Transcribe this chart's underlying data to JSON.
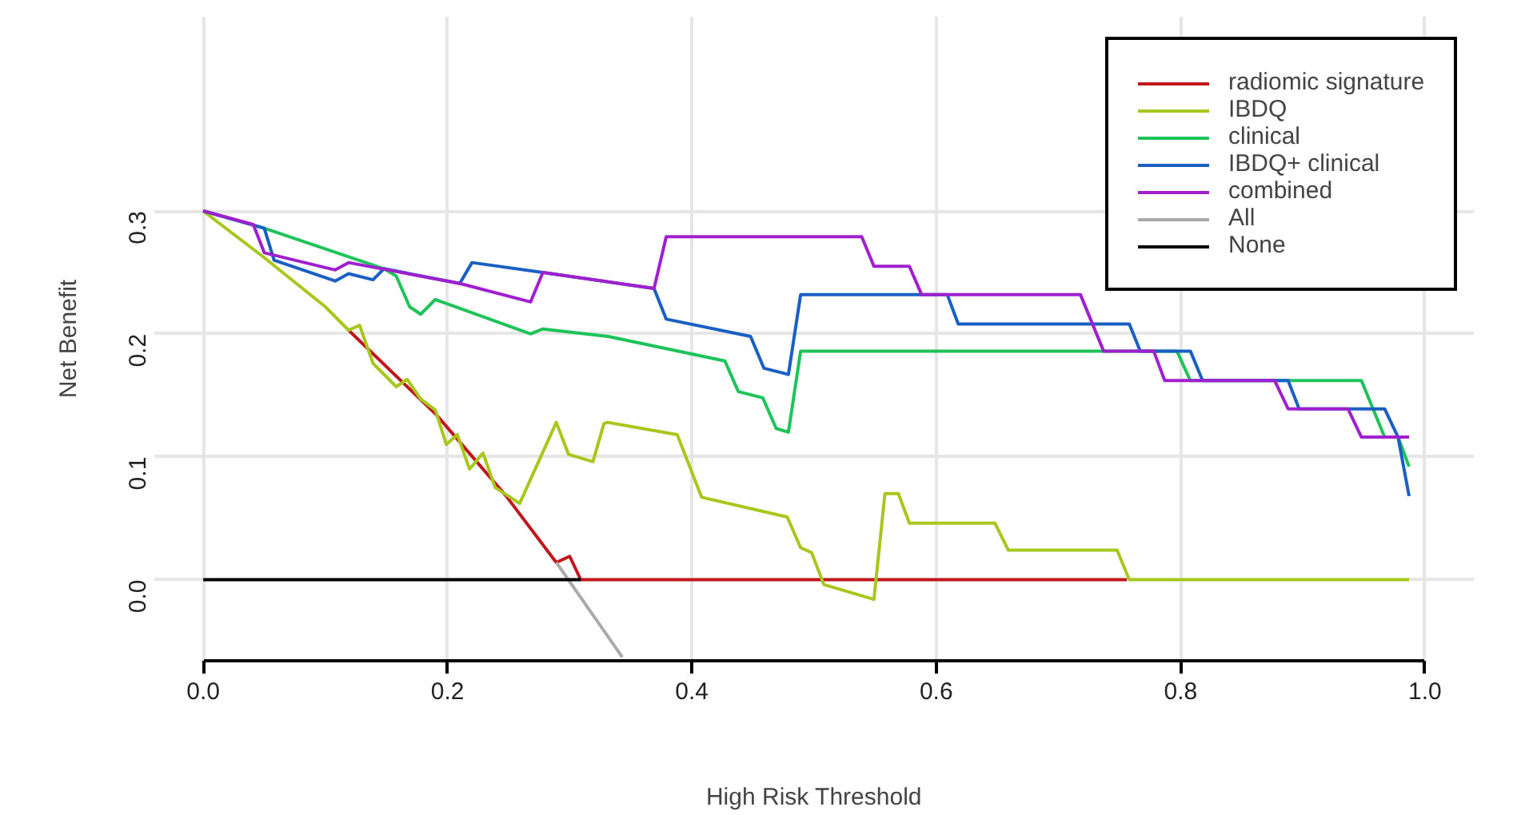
{
  "chart_data": {
    "type": "line",
    "xlabel": "High Risk Threshold",
    "ylabel": "Net Benefit",
    "xlim": [
      -0.04,
      1.04
    ],
    "ylim": [
      -0.066,
      0.458
    ],
    "xticks": [
      {
        "value": 0,
        "label": "0.0"
      },
      {
        "value": 0.2,
        "label": "0.2"
      },
      {
        "value": 0.4,
        "label": "0.4"
      },
      {
        "value": 0.6,
        "label": "0.6"
      },
      {
        "value": 0.8,
        "label": "0.8"
      },
      {
        "value": 1,
        "label": "1.0"
      }
    ],
    "yticks": [
      {
        "value": 0,
        "label": "0.0"
      },
      {
        "value": 0.1,
        "label": "0.1"
      },
      {
        "value": 0.2,
        "label": "0.2"
      },
      {
        "value": 0.3,
        "label": "0.3"
      }
    ],
    "grid": true,
    "legend": "top right",
    "line_style": "solid",
    "marker": "none",
    "series": [
      {
        "name": "radiomic signature",
        "color": "#c0171d",
        "x": [
          0.119,
          0.191,
          0.248,
          0.289,
          0.3,
          0.309,
          0.756
        ],
        "values": [
          0.203,
          0.134,
          0.068,
          0.014,
          0.019,
          0,
          0
        ]
      },
      {
        "name": "IBDQ",
        "color": "#a6c81c",
        "x": [
          0,
          0.05,
          0.1,
          0.119,
          0.128,
          0.139,
          0.158,
          0.167,
          0.178,
          0.19,
          0.199,
          0.208,
          0.218,
          0.229,
          0.239,
          0.259,
          0.289,
          0.299,
          0.319,
          0.328,
          0.331,
          0.388,
          0.408,
          0.478,
          0.489,
          0.498,
          0.508,
          0.549,
          0.558,
          0.569,
          0.578,
          0.648,
          0.659,
          0.748,
          0.758,
          0.987
        ],
        "values": [
          0.3,
          0.262,
          0.222,
          0.203,
          0.207,
          0.176,
          0.157,
          0.163,
          0.147,
          0.138,
          0.11,
          0.118,
          0.09,
          0.103,
          0.075,
          0.062,
          0.128,
          0.102,
          0.096,
          0.127,
          0.128,
          0.118,
          0.067,
          0.051,
          0.026,
          0.022,
          -0.004,
          -0.016,
          0.07,
          0.07,
          0.046,
          0.046,
          0.024,
          0.024,
          0,
          0
        ]
      },
      {
        "name": "clinical",
        "color": "#1ec35a",
        "x": [
          0,
          0.05,
          0.148,
          0.158,
          0.169,
          0.178,
          0.19,
          0.268,
          0.278,
          0.331,
          0.427,
          0.438,
          0.458,
          0.469,
          0.479,
          0.489,
          0.797,
          0.808,
          0.948,
          0.967,
          0.978,
          0.987
        ],
        "values": [
          0.3,
          0.286,
          0.253,
          0.247,
          0.222,
          0.216,
          0.228,
          0.2,
          0.204,
          0.198,
          0.178,
          0.153,
          0.148,
          0.123,
          0.12,
          0.186,
          0.186,
          0.162,
          0.162,
          0.116,
          0.116,
          0.092
        ]
      },
      {
        "name": "IBDQ+ clinical",
        "color": "#1a5fc4",
        "x": [
          0,
          0.05,
          0.058,
          0.108,
          0.119,
          0.139,
          0.148,
          0.21,
          0.22,
          0.278,
          0.369,
          0.379,
          0.448,
          0.459,
          0.479,
          0.489,
          0.609,
          0.618,
          0.758,
          0.767,
          0.808,
          0.818,
          0.888,
          0.897,
          0.967,
          0.978,
          0.987
        ],
        "values": [
          0.3,
          0.286,
          0.26,
          0.243,
          0.249,
          0.244,
          0.253,
          0.241,
          0.258,
          0.25,
          0.237,
          0.212,
          0.198,
          0.172,
          0.167,
          0.232,
          0.232,
          0.208,
          0.208,
          0.186,
          0.186,
          0.162,
          0.162,
          0.139,
          0.139,
          0.116,
          0.068
        ]
      },
      {
        "name": "combined",
        "color": "#a020d0",
        "x": [
          0,
          0.041,
          0.05,
          0.108,
          0.119,
          0.21,
          0.268,
          0.278,
          0.369,
          0.379,
          0.539,
          0.549,
          0.578,
          0.588,
          0.718,
          0.737,
          0.778,
          0.787,
          0.877,
          0.888,
          0.937,
          0.948,
          0.987
        ],
        "values": [
          0.3,
          0.289,
          0.266,
          0.252,
          0.258,
          0.241,
          0.226,
          0.25,
          0.237,
          0.279,
          0.279,
          0.255,
          0.255,
          0.232,
          0.232,
          0.186,
          0.186,
          0.162,
          0.162,
          0.139,
          0.139,
          0.116,
          0.116
        ]
      },
      {
        "name": "All",
        "color": "#aaaaaa",
        "x": [
          0.289,
          0.343
        ],
        "values": [
          0.014,
          -0.063
        ]
      },
      {
        "name": "None",
        "color": "#000000",
        "x": [
          0,
          0.309
        ],
        "values": [
          0,
          0
        ]
      }
    ]
  }
}
